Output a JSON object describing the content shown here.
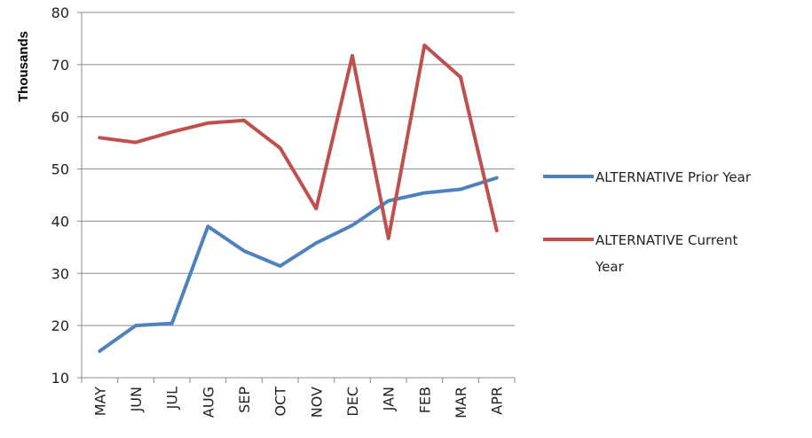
{
  "chart_data": {
    "type": "line",
    "ylabel": "Thousands",
    "xlabel": "",
    "title": "",
    "ylim": [
      10,
      80
    ],
    "yticks": [
      10,
      20,
      30,
      40,
      50,
      60,
      70,
      80
    ],
    "grid": "horizontal",
    "legend_position": "right",
    "categories": [
      "MAY",
      "JUN",
      "JUL",
      "AUG",
      "SEP",
      "OCT",
      "NOV",
      "DEC",
      "JAN",
      "FEB",
      "MAR",
      "APR"
    ],
    "series": [
      {
        "name": "ALTERNATIVE Prior Year",
        "color": "#4f81bd",
        "values": [
          15.1,
          20.0,
          20.4,
          39.0,
          34.3,
          31.4,
          35.8,
          39.2,
          43.9,
          45.4,
          46.1,
          48.3
        ]
      },
      {
        "name": "ALTERNATIVE Current Year",
        "legend_lines": [
          "ALTERNATIVE Current",
          "Year"
        ],
        "color": "#c0504d",
        "values": [
          56.0,
          55.1,
          57.1,
          58.8,
          59.3,
          54.0,
          42.4,
          71.7,
          36.7,
          73.7,
          67.6,
          38.2
        ]
      }
    ]
  }
}
